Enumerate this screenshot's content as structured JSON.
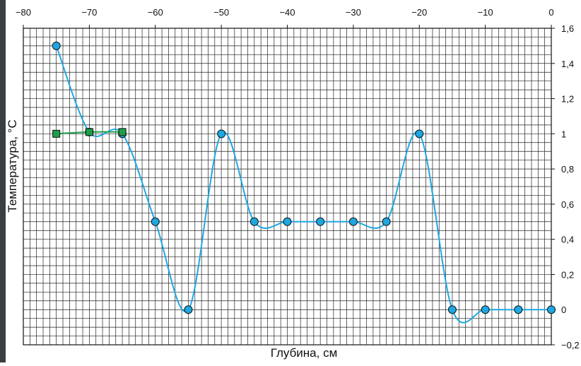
{
  "chart_data": {
    "type": "line",
    "xlabel": "Глубина, см",
    "ylabel": "Температура, °C",
    "xlim": [
      -80,
      0
    ],
    "xticks": [
      {
        "value": -80,
        "label": "−80"
      },
      {
        "value": -70,
        "label": "−70"
      },
      {
        "value": -60,
        "label": "−60"
      },
      {
        "value": -50,
        "label": "−50"
      },
      {
        "value": -40,
        "label": "−40"
      },
      {
        "value": -30,
        "label": "−30"
      },
      {
        "value": -20,
        "label": "−20"
      },
      {
        "value": -10,
        "label": "−10"
      },
      0
    ],
    "ylim": [
      -0.2,
      1.6
    ],
    "yticks": [
      {
        "value": -0.2,
        "label": "−0,2"
      },
      0,
      {
        "value": 0.2,
        "label": "0,2"
      },
      {
        "value": 0.4,
        "label": "0,4"
      },
      {
        "value": 0.6,
        "label": "0,6"
      },
      {
        "value": 0.8,
        "label": "0,8"
      },
      1,
      {
        "value": 1.2,
        "label": "1,2"
      },
      {
        "value": 1.4,
        "label": "1,4"
      },
      {
        "value": 1.6,
        "label": "1,6"
      }
    ],
    "grid": true,
    "minor_grid": {
      "x_step": 1,
      "y_step": 0.05
    },
    "smooth": true,
    "series": [
      {
        "color": "#1ea7e1",
        "marker": "circle",
        "x": [
          -75,
          -70,
          -65,
          -60,
          -55,
          -50,
          -45,
          -40,
          -35,
          -30,
          -25,
          -20,
          -15,
          -10,
          -5,
          0
        ],
        "values": [
          1.5,
          1.01,
          1.0,
          0.5,
          0,
          1.0,
          0.5,
          0.5,
          0.5,
          0.5,
          0.5,
          1.0,
          0,
          0,
          0,
          0
        ]
      },
      {
        "color": "#1e9e4a",
        "marker": "square",
        "x": [
          -75,
          -70,
          -65
        ],
        "values": [
          1.0,
          1.01,
          1.01
        ]
      }
    ]
  }
}
